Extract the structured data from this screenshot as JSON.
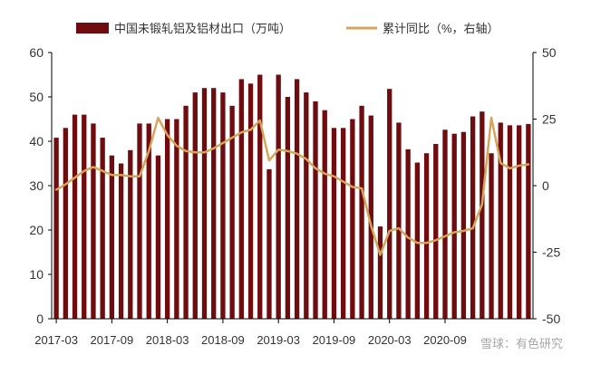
{
  "chart_data": {
    "type": "bar",
    "x": [
      "2017-03",
      "2017-04",
      "2017-05",
      "2017-06",
      "2017-07",
      "2017-08",
      "2017-09",
      "2017-10",
      "2017-11",
      "2017-12",
      "2018-01",
      "2018-02",
      "2018-03",
      "2018-04",
      "2018-05",
      "2018-06",
      "2018-07",
      "2018-08",
      "2018-09",
      "2018-10",
      "2018-11",
      "2018-12",
      "2019-01",
      "2019-02",
      "2019-03",
      "2019-04",
      "2019-05",
      "2019-06",
      "2019-07",
      "2019-08",
      "2019-09",
      "2019-10",
      "2019-11",
      "2019-12",
      "2020-01",
      "2020-02",
      "2020-03",
      "2020-04",
      "2020-05",
      "2020-06",
      "2020-07",
      "2020-08",
      "2020-09",
      "2020-10",
      "2020-11",
      "2020-12",
      "2021-01",
      "2021-02",
      "2021-03",
      "2021-04",
      "2021-05",
      "2021-06"
    ],
    "xticks": [
      "2017-03",
      "2017-09",
      "2018-03",
      "2018-09",
      "2019-03",
      "2019-09",
      "2020-03",
      "2020-09"
    ],
    "series": [
      {
        "name": "中国未锻轧铝及铝材出口（万吨）",
        "type": "bar",
        "axis": "left",
        "color": "#6e0c10",
        "values": [
          40.8,
          43.0,
          46.0,
          46.0,
          44.0,
          40.8,
          36.8,
          35.0,
          38.0,
          44.0,
          44.0,
          36.8,
          45.0,
          45.0,
          48.0,
          51.0,
          52.0,
          52.0,
          51.0,
          48.0,
          54.0,
          53.0,
          55.0,
          33.7,
          55.0,
          50.0,
          54.0,
          51.0,
          49.0,
          47.0,
          43.0,
          43.0,
          45.0,
          48.0,
          45.8,
          20.8,
          51.8,
          44.2,
          38.2,
          35.2,
          37.3,
          39.4,
          42.6,
          41.7,
          42.1,
          45.6,
          46.7,
          37.3,
          44.2,
          43.6,
          43.6,
          43.9
        ]
      },
      {
        "name": "累计同比（%，右轴）",
        "type": "line",
        "axis": "right",
        "color": "#d4a55a",
        "values": [
          -1.5,
          0.5,
          3.0,
          5.5,
          7.0,
          5.5,
          4.0,
          4.0,
          3.5,
          3.5,
          13.0,
          25.5,
          19.0,
          15.0,
          13.0,
          12.5,
          12.5,
          14.0,
          16.0,
          18.0,
          20.0,
          21.0,
          24.5,
          9.5,
          13.5,
          13.0,
          12.0,
          10.0,
          6.5,
          4.5,
          3.5,
          1.5,
          -0.5,
          -1.0,
          -15.0,
          -26.0,
          -17.0,
          -16.0,
          -19.5,
          -21.5,
          -21.5,
          -20.5,
          -19.0,
          -17.5,
          -17.0,
          -16.0,
          -7.0,
          25.5,
          8.5,
          6.5,
          7.5,
          8.0
        ]
      }
    ],
    "y_left": {
      "ylim": [
        0,
        60
      ],
      "ticks": [
        "0",
        "10",
        "20",
        "30",
        "40",
        "50",
        "60"
      ]
    },
    "y_right": {
      "ylim": [
        -50,
        50
      ],
      "ticks": [
        "-50",
        "-25",
        "0",
        "25",
        "50"
      ]
    },
    "grid": false,
    "legend_position": "top"
  },
  "watermark": "雪球：有色研究"
}
